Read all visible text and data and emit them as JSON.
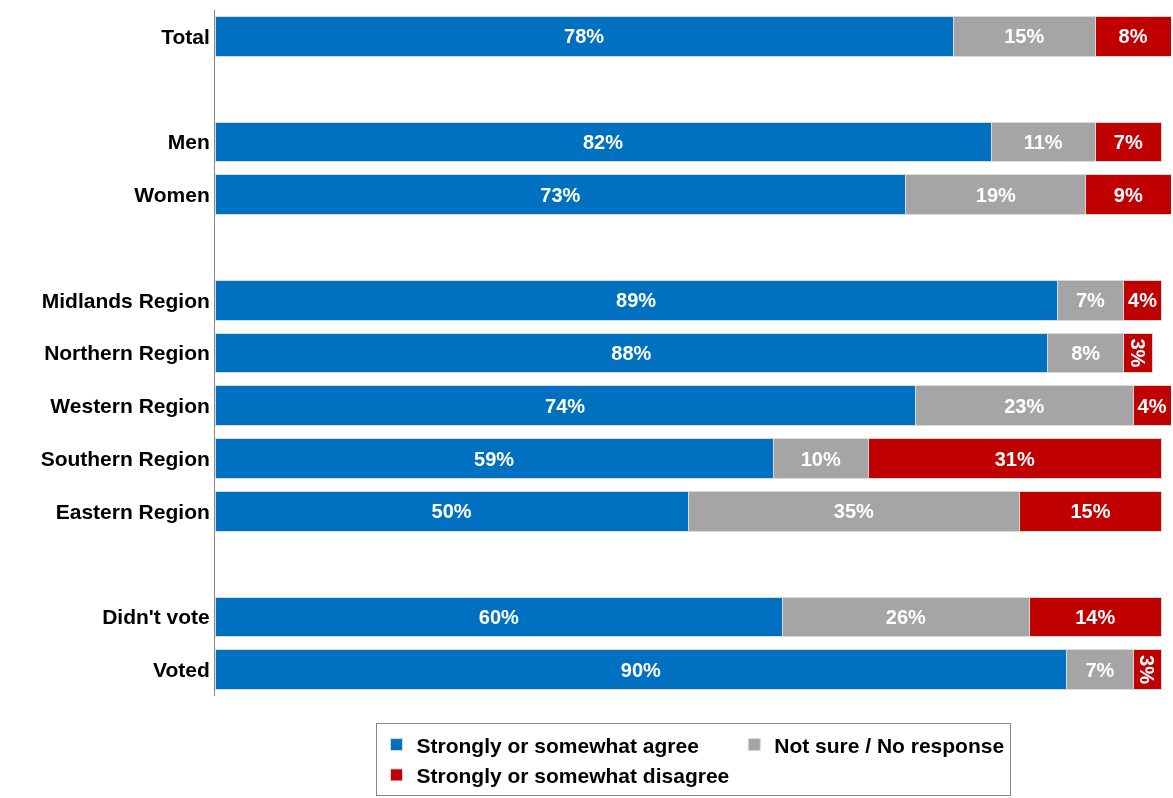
{
  "chart_data": {
    "type": "bar",
    "orientation": "horizontal",
    "stacked": true,
    "legend": "bottom",
    "categories": [
      "Total",
      null,
      "Men",
      "Women",
      null,
      "Midlands Region",
      "Northern Region",
      "Western Region",
      "Southern Region",
      "Eastern Region",
      null,
      "Didn't vote",
      "Voted"
    ],
    "series": [
      {
        "name": "Strongly or somewhat agree",
        "color": "#0070c0",
        "values": [
          78,
          null,
          82,
          73,
          null,
          89,
          88,
          74,
          59,
          50,
          null,
          60,
          90
        ],
        "value_labels": [
          "78%",
          null,
          "82%",
          "73%",
          null,
          "89%",
          "88%",
          "74%",
          "59%",
          "50%",
          null,
          "60%",
          "90%"
        ]
      },
      {
        "name": "Not sure / No response",
        "color": "#a5a5a5",
        "values": [
          15,
          null,
          11,
          19,
          null,
          7,
          8,
          23,
          10,
          35,
          null,
          26,
          7
        ],
        "value_labels": [
          "15%",
          null,
          "11%",
          "19%",
          null,
          "7%",
          "8%",
          "23%",
          "10%",
          "35%",
          null,
          "26%",
          "7%"
        ]
      },
      {
        "name": "Strongly or somewhat disagree",
        "color": "#c00000",
        "values": [
          8,
          null,
          7,
          9,
          null,
          4,
          3,
          4,
          31,
          15,
          null,
          14,
          3
        ],
        "value_labels": [
          "8%",
          null,
          "7%",
          "9%",
          null,
          "4%",
          "3%",
          "4%",
          "31%",
          "15%",
          null,
          "14%",
          "3%"
        ]
      }
    ]
  }
}
